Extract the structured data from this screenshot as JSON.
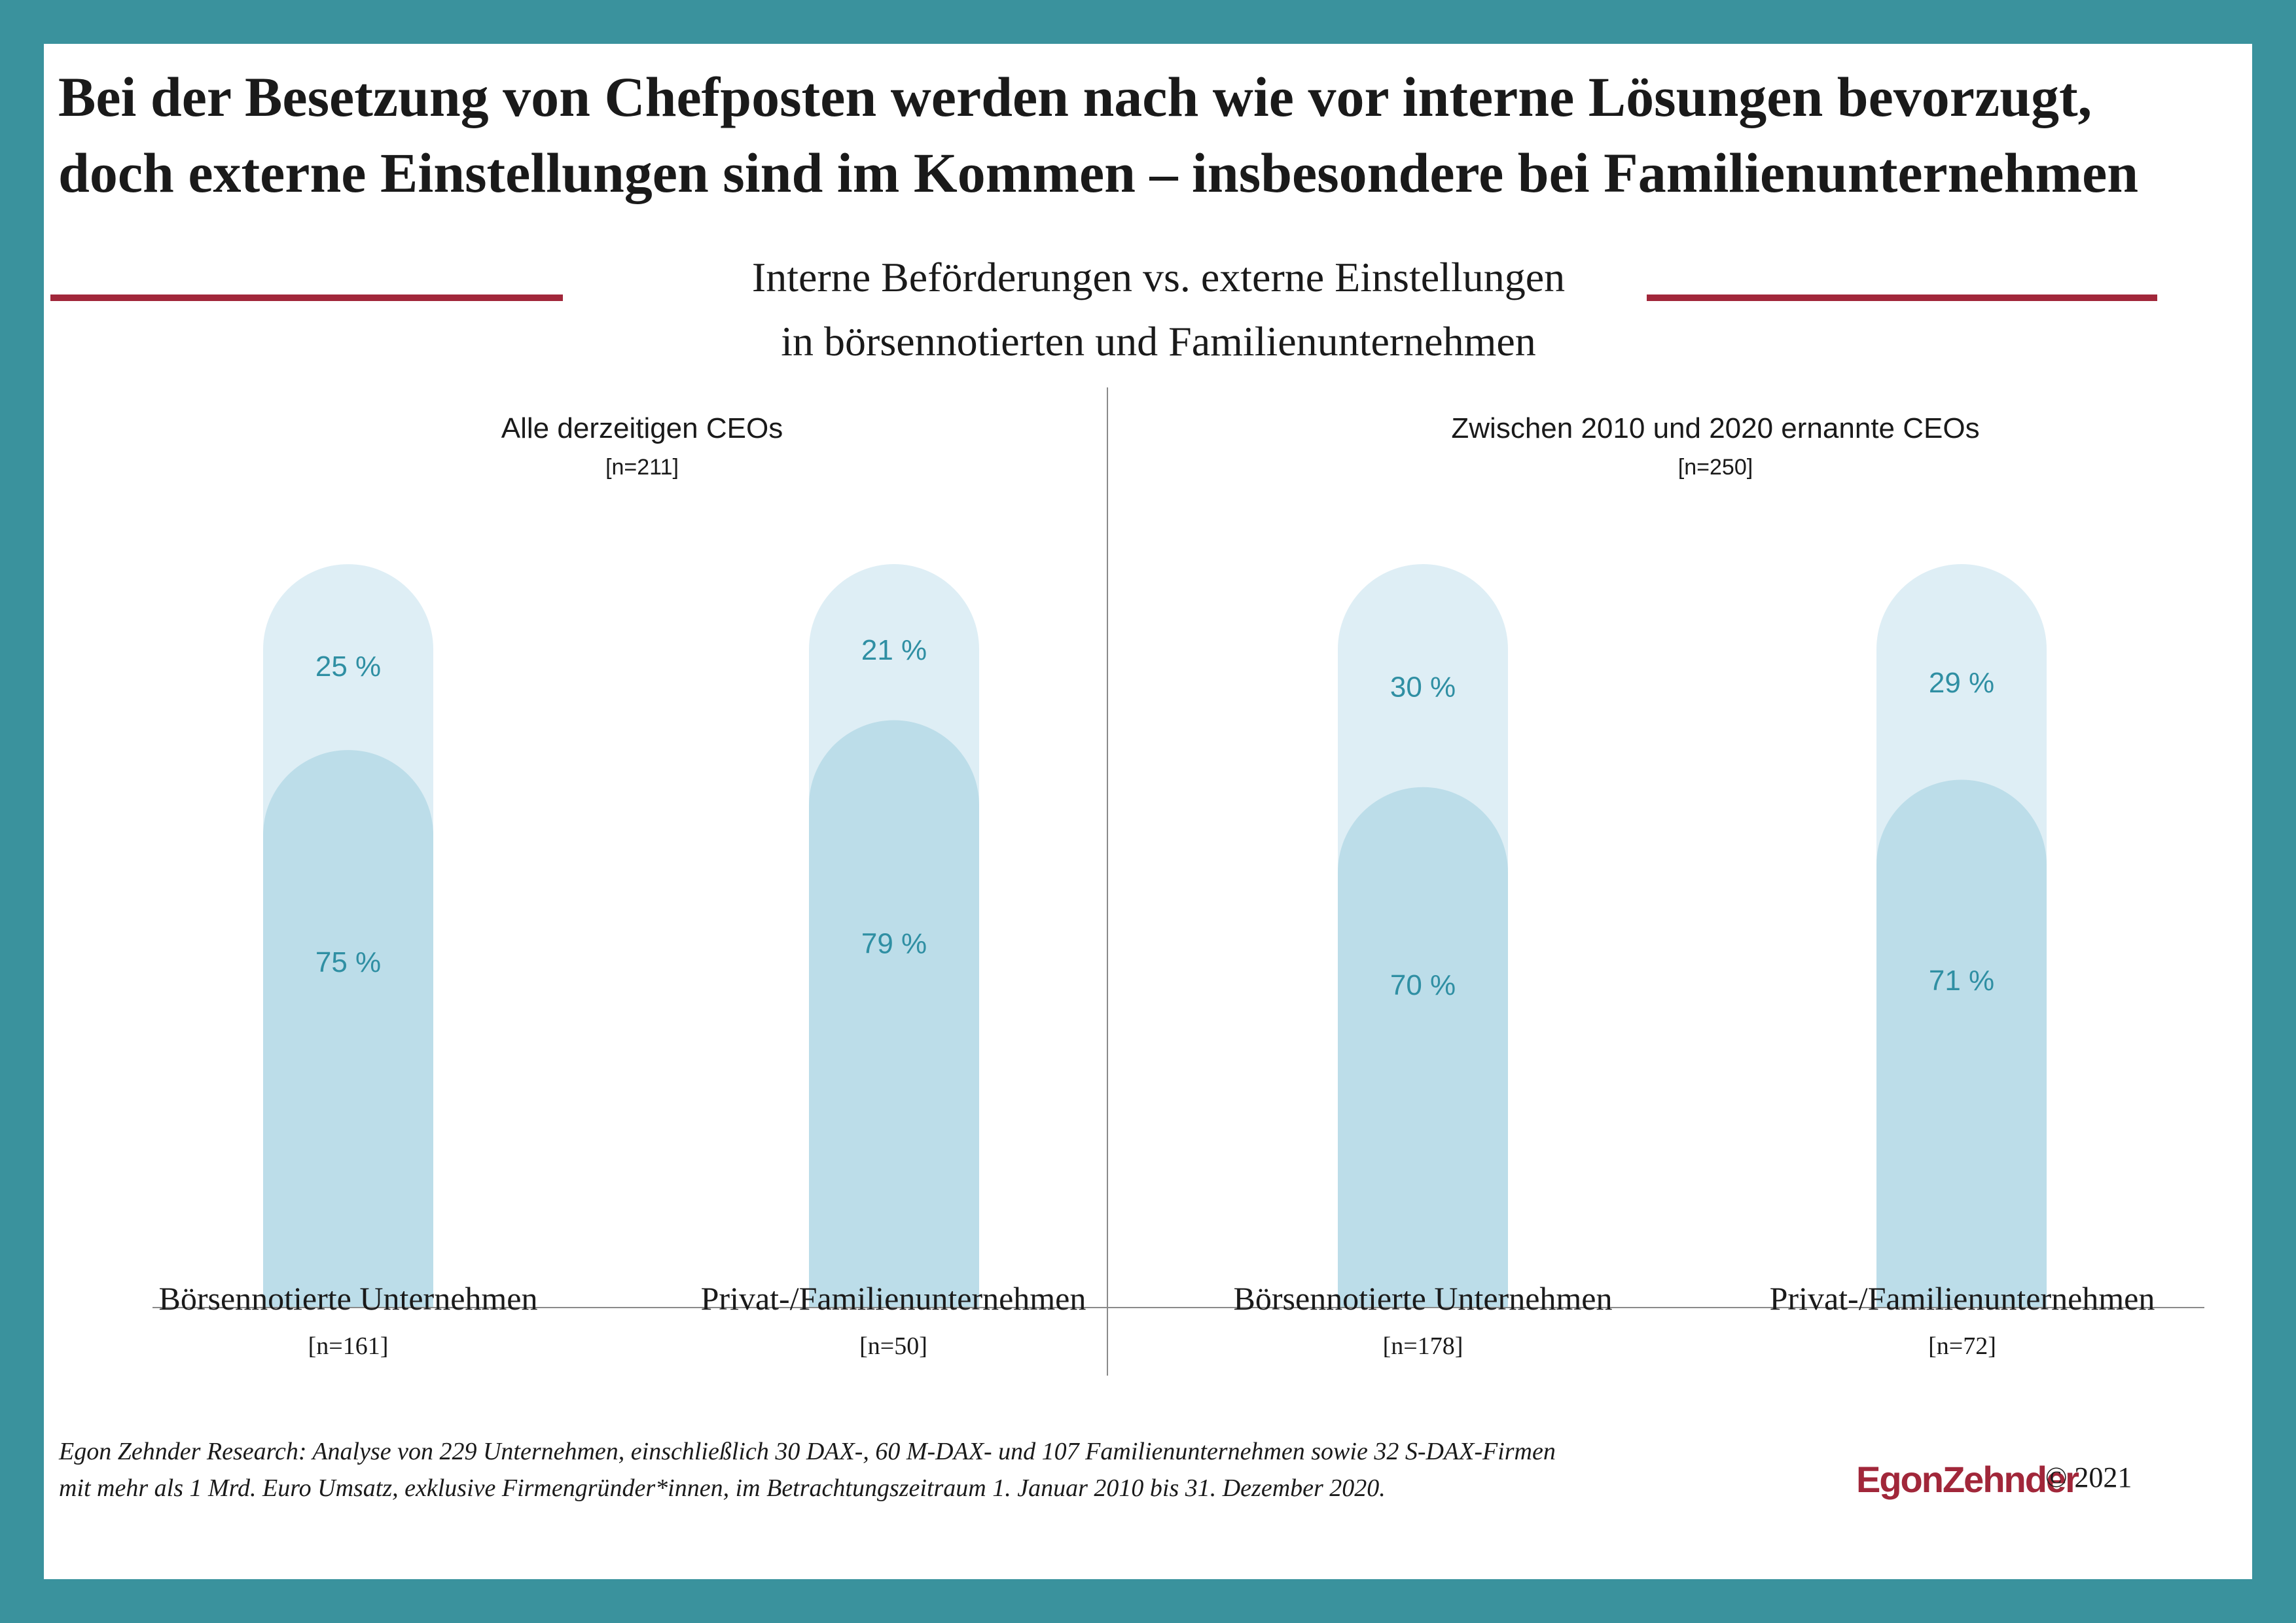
{
  "headline": [
    "Bei der Besetzung von Chefposten werden nach wie vor interne Lösungen bevorzugt,",
    "doch externe Einstellungen sind im Kommen – insbesondere bei Familienunternehmen"
  ],
  "subtitle": [
    "Interne Beförderungen vs. externe Einstellungen",
    "in börsennotierten und Familienunternehmen"
  ],
  "colors": {
    "frame": "#3a929d",
    "accent_rule": "#a1273a",
    "internal": "#bcdde9",
    "external": "#deeef5",
    "value_label": "#2f8fa3"
  },
  "chart_data": [
    {
      "type": "bar",
      "stacked": true,
      "title": "Alle derzeitigen CEOs",
      "n": "[n=211]",
      "categories": [
        "Börsennotierte Unternehmen",
        "Privat-/Familienunternehmen"
      ],
      "category_n": [
        "[n=161]",
        "[n=50]"
      ],
      "series": [
        {
          "values": [
            75,
            79
          ],
          "labels": [
            "75 %",
            "79 %"
          ]
        },
        {
          "values": [
            25,
            21
          ],
          "labels": [
            "25 %",
            "21 %"
          ]
        }
      ],
      "ylim": [
        0,
        100
      ]
    },
    {
      "type": "bar",
      "stacked": true,
      "title": "Zwischen 2010 und 2020 ernannte CEOs",
      "n": "[n=250]",
      "categories": [
        "Börsennotierte Unternehmen",
        "Privat-/Familienunternehmen"
      ],
      "category_n": [
        "[n=178]",
        "[n=72]"
      ],
      "series": [
        {
          "values": [
            70,
            71
          ],
          "labels": [
            "70 %",
            "71 %"
          ]
        },
        {
          "values": [
            30,
            29
          ],
          "labels": [
            "30 %",
            "29 %"
          ]
        }
      ],
      "ylim": [
        0,
        100
      ]
    }
  ],
  "footnote": [
    "Egon Zehnder Research: Analyse von 229 Unternehmen, einschließlich 30 DAX-, 60 M-DAX- und 107 Familienunternehmen sowie 32 S-DAX-Firmen",
    "mit mehr als 1 Mrd. Euro Umsatz, exklusive Firmengründer*innen, im Betrachtungszeitraum 1. Januar 2010 bis 31. Dezember 2020."
  ],
  "logo": "EgonZehnder",
  "copyright": "© 2021"
}
